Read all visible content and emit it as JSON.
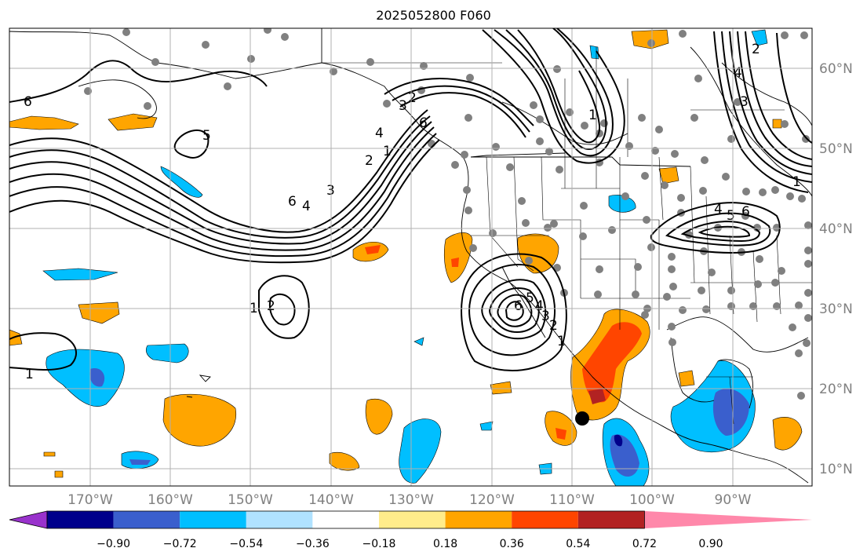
{
  "title": "2025052800 F060",
  "longitude_labels": [
    "170°W",
    "160°W",
    "150°W",
    "140°W",
    "130°W",
    "120°W",
    "110°W",
    "100°W",
    "90°W"
  ],
  "latitude_labels": [
    "60°N",
    "50°N",
    "40°N",
    "30°N",
    "20°N",
    "10°N"
  ],
  "colorbar": {
    "tick_labels": [
      "−0.90",
      "−0.72",
      "−0.54",
      "−0.36",
      "−0.18",
      "0.18",
      "0.36",
      "0.54",
      "0.72",
      "0.90"
    ],
    "colors": [
      "#9932cc",
      "#00008b",
      "#3a5fcd",
      "#00bfff",
      "#b0e2ff",
      "#ffffff",
      "#ffec8b",
      "#ffa500",
      "#ff4500",
      "#b22222",
      "#ff88aa"
    ]
  },
  "contour_labels": [
    "6",
    "5",
    "6",
    "4",
    "3",
    "2",
    "1",
    "6",
    "4",
    "3",
    "2",
    "1",
    "1",
    "2",
    "1",
    "6",
    "5",
    "4",
    "3",
    "2",
    "1",
    "4",
    "5",
    "6",
    "4",
    "3",
    "2",
    "1"
  ],
  "colors": {
    "land_outline": "#000000",
    "station_dot": "#808080",
    "grid": "#b0b0b0"
  }
}
